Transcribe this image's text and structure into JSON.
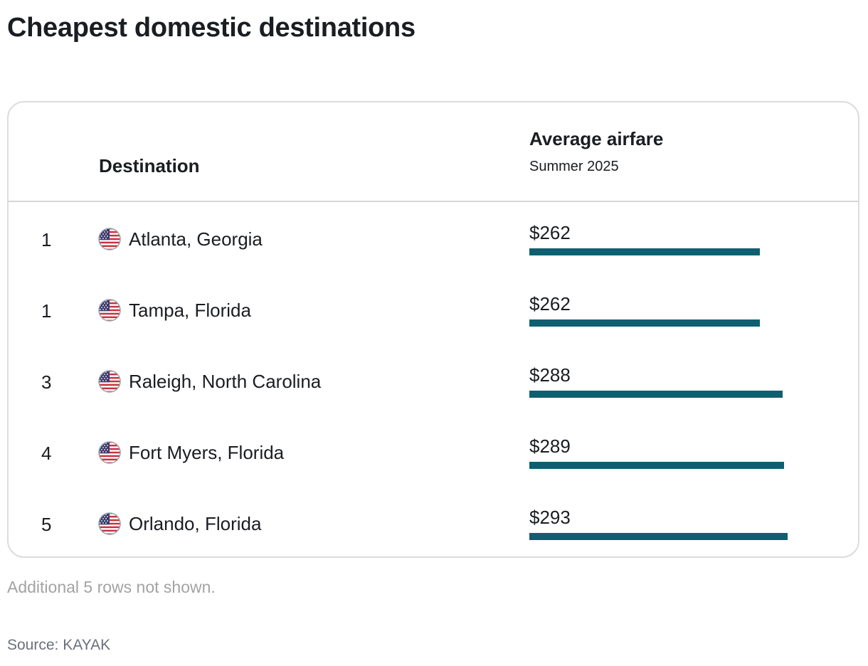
{
  "page": {
    "title": "Cheapest domestic destinations",
    "note": "Additional 5 rows not shown.",
    "source": "Source: KAYAK"
  },
  "table": {
    "columns": {
      "destination": "Destination",
      "airfare": "Average airfare",
      "airfare_sub": "Summer 2025"
    }
  },
  "chart_data": {
    "type": "bar",
    "orientation": "horizontal",
    "title": "Cheapest domestic destinations",
    "value_prefix": "$",
    "bar_color": "#0f5f70",
    "rows": [
      {
        "rank": "1",
        "destination": "Atlanta, Georgia",
        "flag_icon": "us-flag-icon",
        "label": "$262",
        "value": 262
      },
      {
        "rank": "1",
        "destination": "Tampa, Florida",
        "flag_icon": "us-flag-icon",
        "label": "$262",
        "value": 262
      },
      {
        "rank": "3",
        "destination": "Raleigh, North Carolina",
        "flag_icon": "us-flag-icon",
        "label": "$288",
        "value": 288
      },
      {
        "rank": "4",
        "destination": "Fort Myers, Florida",
        "flag_icon": "us-flag-icon",
        "label": "$289",
        "value": 289
      },
      {
        "rank": "5",
        "destination": "Orlando, Florida",
        "flag_icon": "us-flag-icon",
        "label": "$293",
        "value": 293
      }
    ]
  }
}
